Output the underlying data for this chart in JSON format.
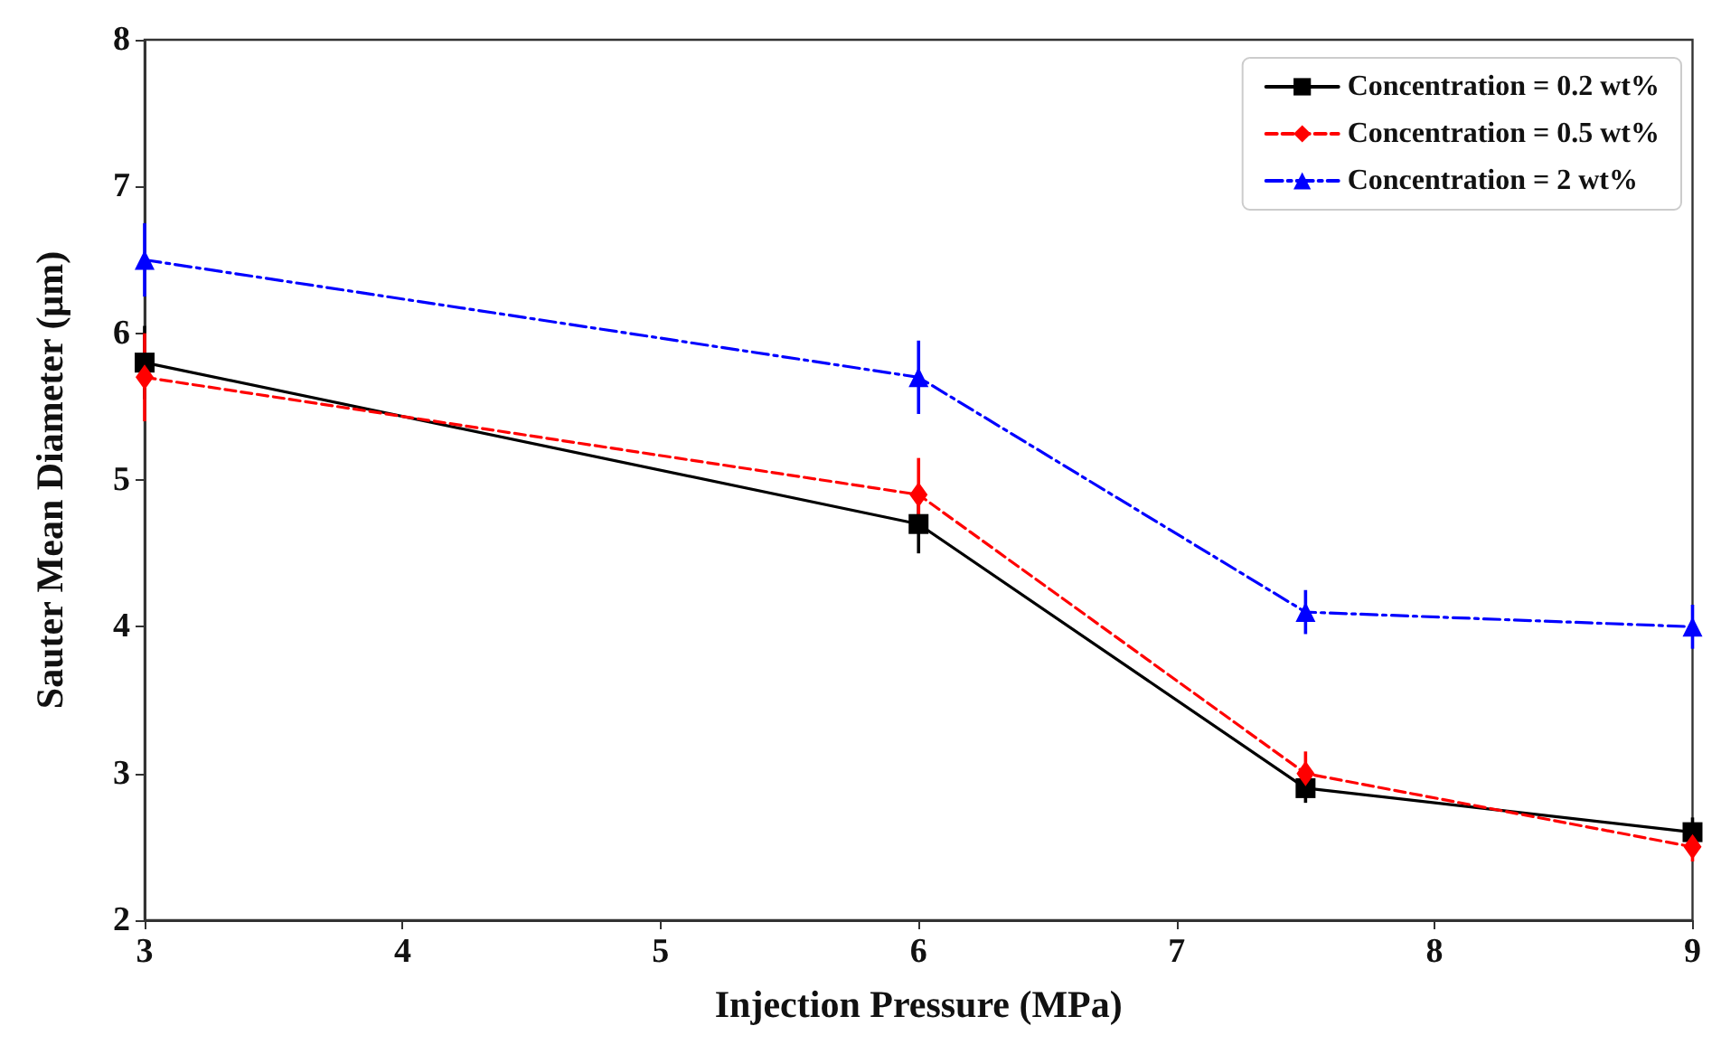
{
  "chart_data": {
    "type": "line",
    "xlabel": "Injection Pressure (MPa)",
    "ylabel": "Sauter Mean Diameter (μm)",
    "x": [
      3,
      6,
      7.5,
      9
    ],
    "series": [
      {
        "name": "Concentration = 0.2 wt%",
        "color": "#000000",
        "marker": "square",
        "line_style": "solid",
        "values": [
          5.8,
          4.7,
          2.9,
          2.6
        ],
        "errors": [
          0.25,
          0.2,
          0.1,
          0.1
        ]
      },
      {
        "name": "Concentration = 0.5 wt%",
        "color": "#ff0000",
        "marker": "diamond",
        "line_style": "dashed",
        "values": [
          5.7,
          4.9,
          3.0,
          2.5
        ],
        "errors": [
          0.3,
          0.25,
          0.15,
          0.1
        ]
      },
      {
        "name": "Concentration = 2 wt%",
        "color": "#0000ff",
        "marker": "triangle",
        "line_style": "dashdot",
        "values": [
          6.5,
          5.7,
          4.1,
          4.0
        ],
        "errors": [
          0.25,
          0.25,
          0.15,
          0.15
        ]
      }
    ],
    "xlim": [
      3,
      9
    ],
    "xticks": [
      3,
      4,
      5,
      6,
      7,
      8,
      9
    ],
    "ylim": [
      2,
      8
    ],
    "yticks": [
      2,
      3,
      4,
      5,
      6,
      7,
      8
    ],
    "grid": false,
    "legend": "top right"
  }
}
